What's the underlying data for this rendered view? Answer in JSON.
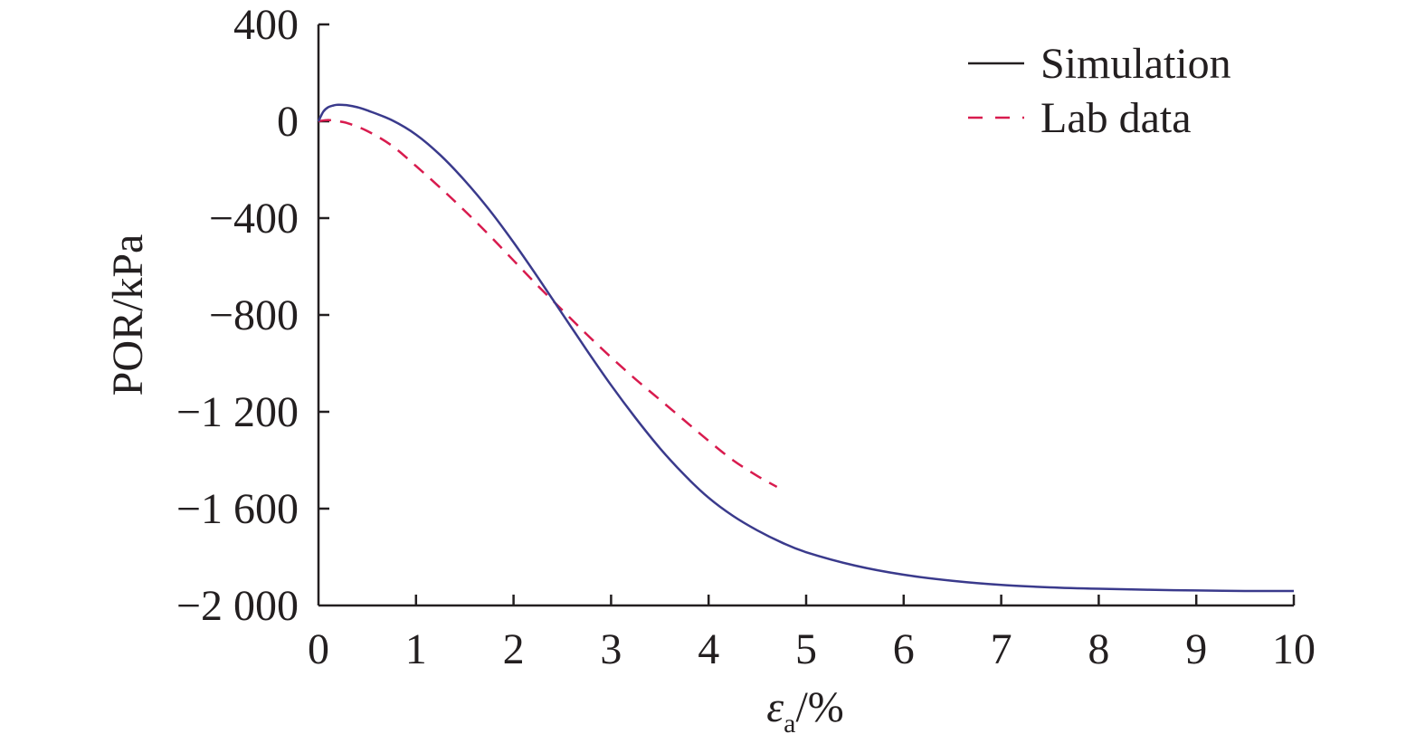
{
  "chart_data": {
    "type": "line",
    "xlabel": "ε",
    "xlabel_subscript": "a",
    "xlabel_suffix": "/%",
    "ylabel": "POR/kPa",
    "xlim": [
      0,
      10
    ],
    "ylim": [
      -2000,
      400
    ],
    "x_ticks": [
      0,
      1,
      2,
      3,
      4,
      5,
      6,
      7,
      8,
      9,
      10
    ],
    "x_tick_labels": [
      "0",
      "1",
      "2",
      "3",
      "4",
      "5",
      "6",
      "7",
      "8",
      "9",
      "10"
    ],
    "y_ticks": [
      400,
      0,
      -400,
      -800,
      -1200,
      -1600,
      -2000
    ],
    "y_tick_labels": [
      "400",
      "0",
      "−400",
      "−800",
      "−1 200",
      "−1 600",
      "−2 000"
    ],
    "grid": false,
    "legend_position": "top-right",
    "series": [
      {
        "name": "Simulation",
        "style": "solid",
        "color": "#3a3a8c",
        "x": [
          0,
          0.05,
          0.1,
          0.15,
          0.2,
          0.3,
          0.4,
          0.5,
          0.75,
          1.0,
          1.25,
          1.5,
          1.75,
          2.0,
          2.25,
          2.5,
          2.75,
          3.0,
          3.25,
          3.5,
          3.75,
          4.0,
          4.25,
          4.5,
          4.75,
          5.0,
          5.5,
          6.0,
          6.5,
          7.0,
          7.5,
          8.0,
          8.5,
          9.0,
          9.5,
          10.0
        ],
        "y": [
          0,
          40,
          58,
          65,
          68,
          66,
          58,
          45,
          5,
          -55,
          -140,
          -245,
          -365,
          -500,
          -645,
          -795,
          -945,
          -1090,
          -1225,
          -1350,
          -1460,
          -1555,
          -1630,
          -1690,
          -1740,
          -1780,
          -1835,
          -1873,
          -1898,
          -1915,
          -1925,
          -1931,
          -1935,
          -1938,
          -1940,
          -1940
        ]
      },
      {
        "name": "Lab data",
        "style": "dashed",
        "color": "#d81b4e",
        "x": [
          0,
          0.1,
          0.2,
          0.3,
          0.5,
          0.75,
          1.0,
          1.25,
          1.5,
          1.75,
          2.0,
          2.25,
          2.5,
          2.75,
          3.0,
          3.25,
          3.5,
          3.75,
          4.0,
          4.25,
          4.5,
          4.7
        ],
        "y": [
          0,
          5,
          0,
          -8,
          -40,
          -100,
          -185,
          -275,
          -370,
          -470,
          -575,
          -680,
          -780,
          -880,
          -975,
          -1065,
          -1150,
          -1235,
          -1320,
          -1400,
          -1465,
          -1510
        ]
      }
    ]
  }
}
